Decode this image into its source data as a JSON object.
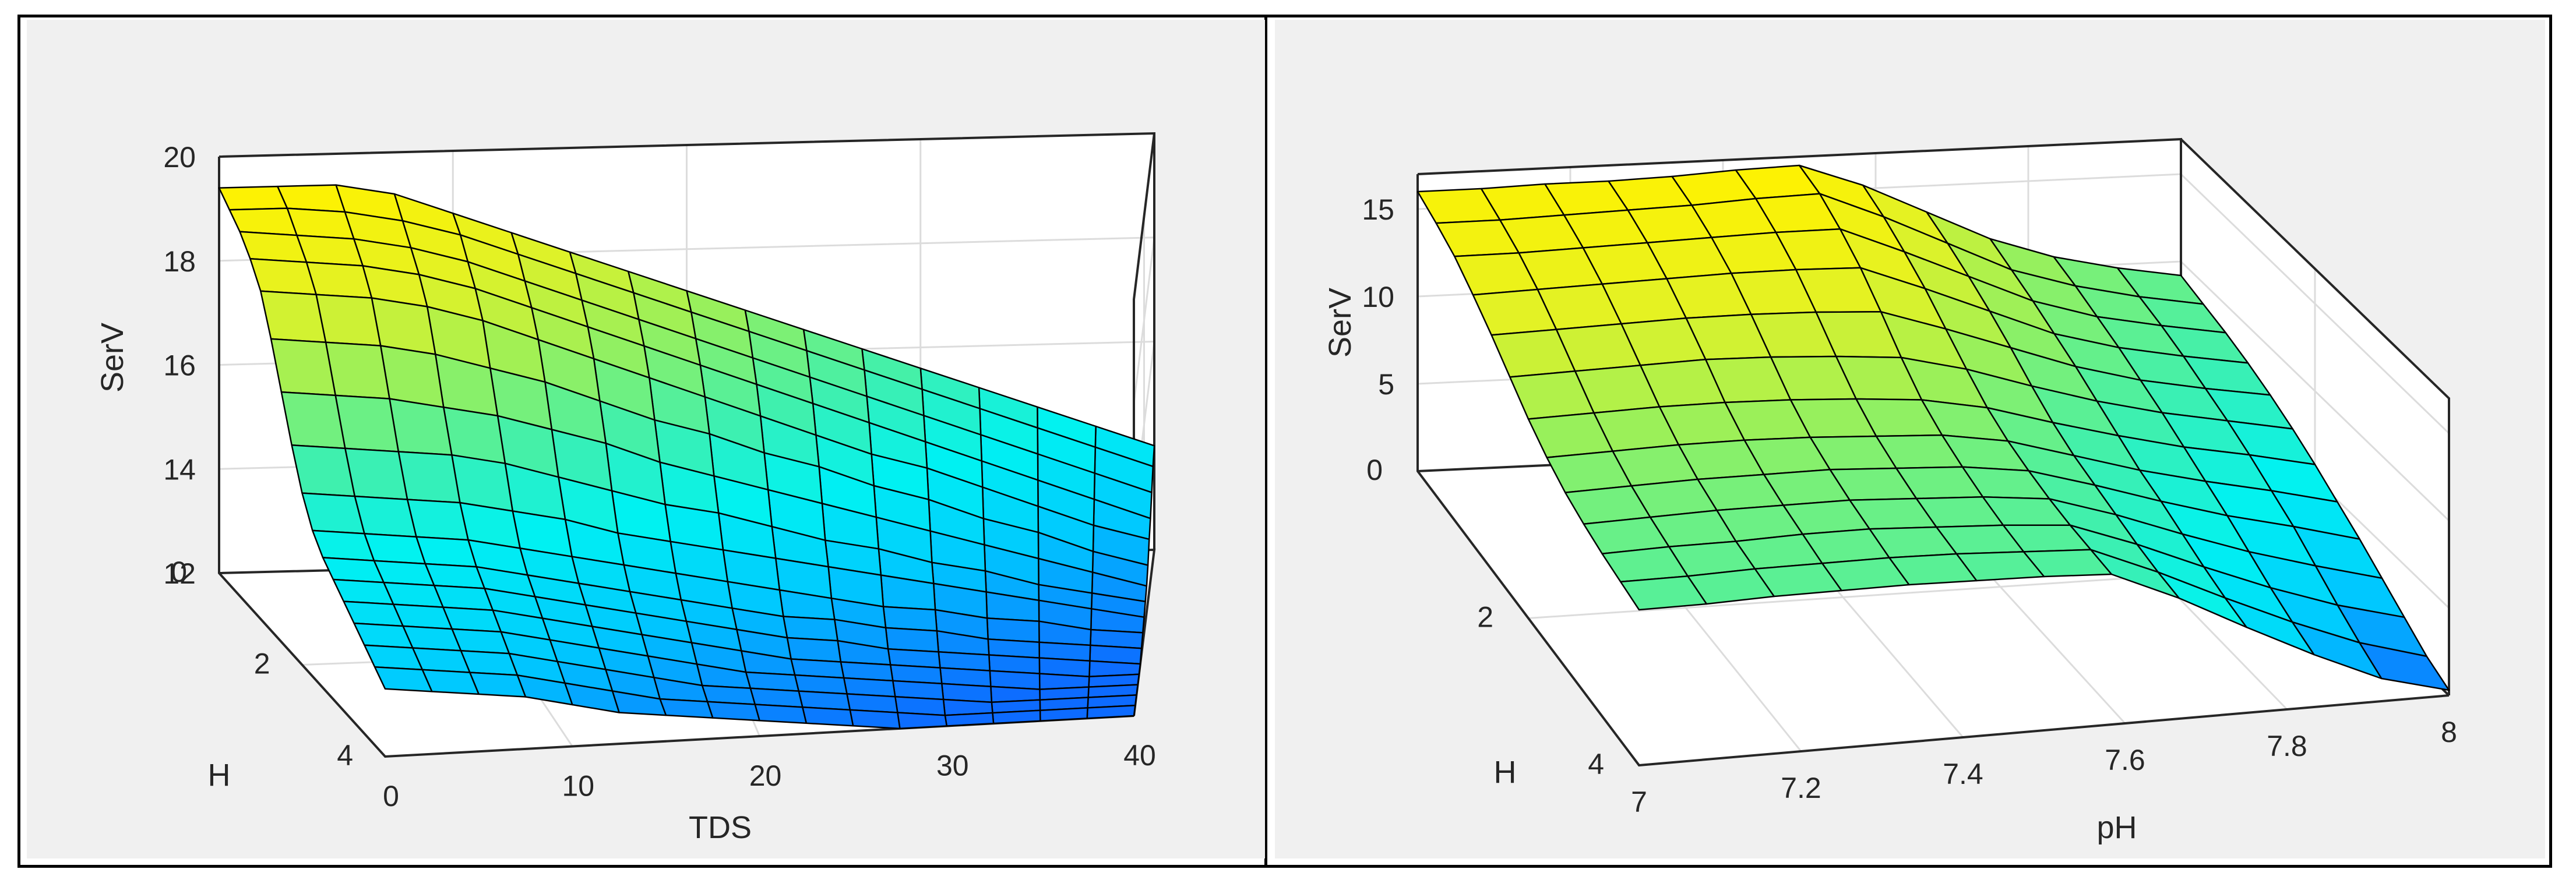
{
  "chart_data": [
    {
      "type": "surface",
      "xlabel": "TDS",
      "ylabel": "H",
      "zlabel": "SerV",
      "xlim": [
        0,
        40
      ],
      "ylim": [
        0,
        4
      ],
      "zlim": [
        12,
        20
      ],
      "xticks": [
        "0",
        "10",
        "20",
        "30",
        "40"
      ],
      "yticks": [
        "0",
        "2",
        "4"
      ],
      "zticks": [
        "12",
        "14",
        "16",
        "18",
        "20"
      ],
      "grid": true,
      "colormap": [
        "#0d6bff",
        "#00c8ff",
        "#00f2f2",
        "#45f0a8",
        "#9af05a",
        "#e2f226",
        "#fff200"
      ],
      "x": [
        0,
        2.5,
        5,
        7.5,
        10,
        12.5,
        15,
        17.5,
        20,
        22.5,
        25,
        27.5,
        30,
        32.5,
        35,
        37.5,
        40
      ],
      "y": [
        0,
        0.25,
        0.5,
        0.75,
        1,
        1.25,
        1.5,
        1.75,
        2,
        2.25,
        2.5,
        2.75,
        3,
        3.25,
        3.5,
        3.75,
        4
      ],
      "z": [
        [
          19.4,
          19.4,
          19.4,
          19.2,
          18.8,
          18.4,
          18.0,
          17.6,
          17.2,
          16.8,
          16.4,
          16.0,
          15.6,
          15.2,
          14.8,
          14.4,
          14.0
        ],
        [
          19.2,
          19.2,
          19.1,
          18.9,
          18.6,
          18.2,
          17.8,
          17.4,
          17.0,
          16.6,
          16.2,
          15.8,
          15.4,
          15.0,
          14.6,
          14.2,
          13.8
        ],
        [
          19.0,
          18.9,
          18.8,
          18.6,
          18.3,
          17.9,
          17.5,
          17.1,
          16.7,
          16.3,
          15.9,
          15.5,
          15.1,
          14.7,
          14.3,
          13.9,
          13.5
        ],
        [
          18.7,
          18.6,
          18.5,
          18.3,
          18.0,
          17.6,
          17.2,
          16.8,
          16.4,
          16.0,
          15.6,
          15.2,
          14.8,
          14.4,
          14.0,
          13.6,
          13.2
        ],
        [
          18.3,
          18.2,
          18.1,
          17.9,
          17.6,
          17.2,
          16.8,
          16.4,
          16.0,
          15.6,
          15.2,
          14.8,
          14.5,
          14.1,
          13.7,
          13.3,
          13.0
        ],
        [
          17.6,
          17.5,
          17.4,
          17.2,
          16.9,
          16.6,
          16.2,
          15.8,
          15.5,
          15.1,
          14.8,
          14.4,
          14.1,
          13.7,
          13.4,
          13.0,
          12.7
        ],
        [
          16.8,
          16.7,
          16.6,
          16.4,
          16.2,
          15.9,
          15.6,
          15.2,
          14.9,
          14.6,
          14.3,
          14.0,
          13.7,
          13.4,
          13.1,
          12.8,
          12.5
        ],
        [
          16.0,
          15.9,
          15.8,
          15.7,
          15.5,
          15.2,
          14.9,
          14.6,
          14.4,
          14.1,
          13.8,
          13.6,
          13.3,
          13.1,
          12.8,
          12.6,
          12.4
        ],
        [
          15.3,
          15.2,
          15.1,
          15.0,
          14.8,
          14.6,
          14.3,
          14.1,
          13.9,
          13.7,
          13.5,
          13.3,
          13.1,
          12.9,
          12.7,
          12.5,
          12.3
        ],
        [
          14.8,
          14.7,
          14.6,
          14.5,
          14.3,
          14.1,
          13.9,
          13.7,
          13.5,
          13.3,
          13.1,
          12.9,
          12.8,
          12.6,
          12.5,
          12.3,
          12.2
        ],
        [
          14.5,
          14.4,
          14.3,
          14.2,
          14.0,
          13.8,
          13.6,
          13.4,
          13.2,
          13.0,
          12.9,
          12.7,
          12.6,
          12.4,
          12.3,
          12.2,
          12.1
        ],
        [
          14.3,
          14.2,
          14.1,
          14.0,
          13.8,
          13.6,
          13.4,
          13.2,
          13.0,
          12.8,
          12.7,
          12.5,
          12.4,
          12.3,
          12.2,
          12.1,
          12.0
        ],
        [
          14.1,
          14.0,
          13.9,
          13.8,
          13.6,
          13.4,
          13.2,
          13.0,
          12.8,
          12.6,
          12.5,
          12.4,
          12.3,
          12.2,
          12.1,
          12.0,
          12.0
        ],
        [
          13.9,
          13.8,
          13.7,
          13.6,
          13.4,
          13.2,
          13.0,
          12.8,
          12.6,
          12.5,
          12.4,
          12.3,
          12.2,
          12.1,
          12.0,
          12.0,
          12.0
        ],
        [
          13.7,
          13.6,
          13.5,
          13.4,
          13.2,
          13.0,
          12.8,
          12.6,
          12.5,
          12.4,
          12.3,
          12.2,
          12.1,
          12.0,
          12.0,
          12.0,
          12.0
        ],
        [
          13.5,
          13.4,
          13.3,
          13.2,
          13.0,
          12.8,
          12.6,
          12.5,
          12.4,
          12.3,
          12.2,
          12.1,
          12.0,
          12.0,
          12.0,
          12.0,
          12.0
        ],
        [
          13.3,
          13.2,
          13.1,
          13.0,
          12.8,
          12.6,
          12.5,
          12.4,
          12.3,
          12.2,
          12.1,
          12.0,
          12.0,
          12.0,
          12.0,
          12.0,
          12.0
        ]
      ]
    },
    {
      "type": "surface",
      "xlabel": "pH",
      "ylabel": "H",
      "zlabel": "SerV",
      "xlim": [
        7,
        8
      ],
      "ylim": [
        0,
        4
      ],
      "zlim": [
        0,
        17
      ],
      "xticks": [
        "7",
        "7.2",
        "7.4",
        "7.6",
        "7.8",
        "8"
      ],
      "yticks": [
        "0",
        "2",
        "4"
      ],
      "zticks": [
        "5",
        "10",
        "15"
      ],
      "grid": true,
      "colormap": [
        "#0d6bff",
        "#00c8ff",
        "#00f2f2",
        "#45f0a8",
        "#9af05a",
        "#e2f226",
        "#fff200"
      ],
      "x": [
        7,
        7.0833,
        7.1667,
        7.25,
        7.3333,
        7.4167,
        7.5,
        7.5833,
        7.6667,
        7.75,
        7.8333,
        7.9167,
        8
      ],
      "y": [
        0,
        0.3333,
        0.6667,
        1,
        1.3333,
        1.6667,
        2,
        2.3333,
        2.6667,
        3,
        3.3333,
        3.6667,
        4
      ],
      "z": [
        [
          16.0,
          16.0,
          16.1,
          16.1,
          16.2,
          16.4,
          16.5,
          15.2,
          13.5,
          11.8,
          10.6,
          9.8,
          9.2
        ],
        [
          15.6,
          15.6,
          15.7,
          15.8,
          15.9,
          16.1,
          16.2,
          14.7,
          13.0,
          11.3,
          10.2,
          9.4,
          8.8
        ],
        [
          15.1,
          15.1,
          15.2,
          15.3,
          15.4,
          15.5,
          15.5,
          14.0,
          12.4,
          10.8,
          9.7,
          9.0,
          8.4
        ],
        [
          14.3,
          14.4,
          14.5,
          14.6,
          14.7,
          14.7,
          14.6,
          13.2,
          11.7,
          10.2,
          9.2,
          8.5,
          7.9
        ],
        [
          13.4,
          13.5,
          13.6,
          13.7,
          13.7,
          13.6,
          13.4,
          12.2,
          10.9,
          9.6,
          8.6,
          7.9,
          7.3
        ],
        [
          12.4,
          12.5,
          12.6,
          12.7,
          12.6,
          12.4,
          12.1,
          11.2,
          10.0,
          8.9,
          8.0,
          7.3,
          6.6
        ],
        [
          11.4,
          11.5,
          11.6,
          11.6,
          11.5,
          11.3,
          11.0,
          10.3,
          9.2,
          8.2,
          7.3,
          6.6,
          5.8
        ],
        [
          10.6,
          10.7,
          10.8,
          10.8,
          10.7,
          10.5,
          10.3,
          9.7,
          8.6,
          7.5,
          6.6,
          5.8,
          4.9
        ],
        [
          10.0,
          10.1,
          10.2,
          10.2,
          10.2,
          10.0,
          9.8,
          9.3,
          8.2,
          7.0,
          5.9,
          5.0,
          4.0
        ],
        [
          9.6,
          9.7,
          9.8,
          9.8,
          9.8,
          9.6,
          9.4,
          9.0,
          7.8,
          6.4,
          5.1,
          4.0,
          3.0
        ],
        [
          9.3,
          9.4,
          9.4,
          9.5,
          9.5,
          9.3,
          9.1,
          8.8,
          7.4,
          5.8,
          4.3,
          3.0,
          2.0
        ],
        [
          9.1,
          9.1,
          9.2,
          9.2,
          9.2,
          9.1,
          8.9,
          8.7,
          7.1,
          5.3,
          3.6,
          2.1,
          1.0
        ],
        [
          8.9,
          8.9,
          9.0,
          9.0,
          9.0,
          8.9,
          8.8,
          8.6,
          6.9,
          4.9,
          3.0,
          1.3,
          0.3
        ]
      ]
    }
  ]
}
